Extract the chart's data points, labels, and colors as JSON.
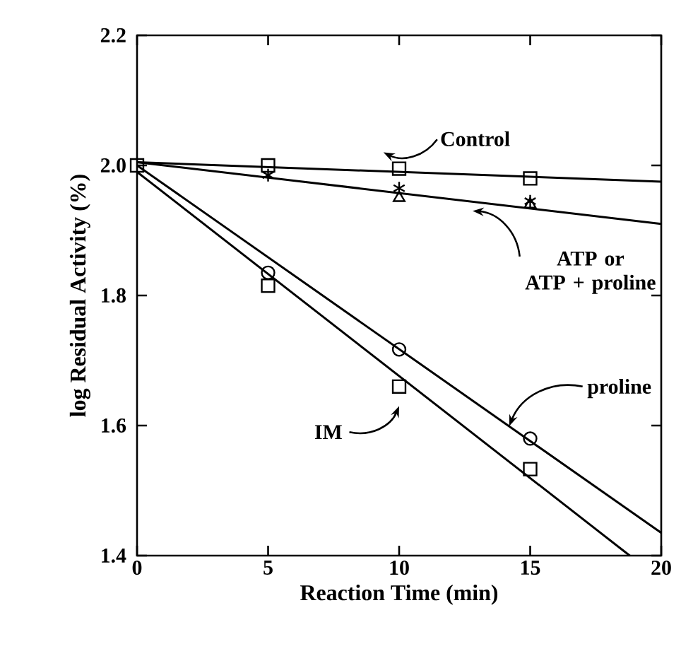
{
  "chart_data": {
    "type": "scatter",
    "xlabel": "Reaction Time (min)",
    "ylabel": "log Residual Activity (%)",
    "xlim": [
      0,
      20
    ],
    "ylim": [
      1.4,
      2.2
    ],
    "xticks": [
      0,
      5,
      10,
      15,
      20
    ],
    "yticks": [
      1.4,
      1.6,
      1.8,
      {
        "value": 2.0,
        "label": "2.0"
      },
      2.2
    ],
    "grid": false,
    "series": [
      {
        "marker": "square",
        "color": "#000000",
        "x": [
          5,
          10,
          15
        ],
        "values": [
          2.0,
          1.995,
          1.98
        ]
      },
      {
        "marker": "cross",
        "color": "#000000",
        "x": [
          5,
          10,
          15
        ],
        "values": [
          1.985,
          1.965,
          1.945
        ]
      },
      {
        "marker": "triangle",
        "color": "#000000",
        "x": [
          10,
          15
        ],
        "values": [
          1.95,
          1.94
        ]
      },
      {
        "marker": "circle",
        "color": "#000000",
        "x": [
          5,
          10,
          15
        ],
        "values": [
          1.835,
          1.717,
          1.58
        ]
      },
      {
        "marker": "square",
        "color": "#000000",
        "x": [
          0,
          5,
          10,
          15
        ],
        "values": [
          2.0,
          1.815,
          1.66,
          1.533
        ]
      },
      {
        "type": "line",
        "color": "#000000",
        "x": [
          0,
          20
        ],
        "values": [
          2.005,
          1.975
        ]
      },
      {
        "type": "line",
        "color": "#000000",
        "x": [
          0,
          20
        ],
        "values": [
          2.005,
          1.91
        ]
      },
      {
        "type": "line",
        "color": "#000000",
        "x": [
          0,
          20
        ],
        "values": [
          2.0,
          1.435
        ]
      },
      {
        "type": "line",
        "color": "#000000",
        "x": [
          0,
          18.8
        ],
        "values": [
          1.99,
          1.4
        ]
      }
    ],
    "annotations": [
      "Control",
      "ATP or\nATP + proline",
      {
        "text": "proline",
        "x": 14.2,
        "y": 1.599
      },
      "IM"
    ]
  }
}
